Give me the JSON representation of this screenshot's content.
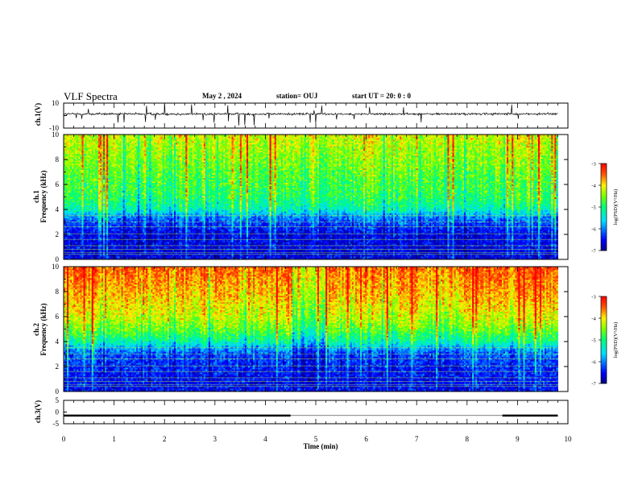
{
  "header": {
    "title": "VLF Spectra",
    "date": "May 2 , 2024",
    "station": "station= OUJ",
    "start": "start  UT =   20: 0  : 0"
  },
  "chart_data": [
    {
      "type": "line",
      "panel": "ch1-waveform",
      "ylabel": "ch.1(V)",
      "ylim": [
        -10,
        10
      ],
      "yticks": [
        "10",
        "-10"
      ],
      "baseline_mean": 1.3,
      "noise_amplitude": 1.5,
      "x_range_min": [
        0,
        9.8
      ]
    },
    {
      "type": "heatmap",
      "panel": "ch1-spectrogram",
      "ylabel": "Frequency (kHz)",
      "ylabel2": "ch.1",
      "ylim": [
        0,
        10
      ],
      "yticks": [
        "0",
        "2",
        "4",
        "6",
        "8",
        "10"
      ],
      "x_range_min": [
        0,
        9.8
      ],
      "colorbar": {
        "label": "log(PSD)(V²/Hz)",
        "range": [
          -7,
          -3
        ],
        "ticks": [
          "-3",
          "-4",
          "-5",
          "-6",
          "-7"
        ]
      },
      "band_profile_khz_to_logpsd": [
        [
          0,
          -6.6
        ],
        [
          1,
          -6.6
        ],
        [
          2,
          -6.6
        ],
        [
          3,
          -6.2
        ],
        [
          3.5,
          -5.9
        ],
        [
          4,
          -5.3
        ],
        [
          5,
          -4.9
        ],
        [
          6,
          -4.8
        ],
        [
          8,
          -4.5
        ],
        [
          10,
          -4.2
        ]
      ]
    },
    {
      "type": "heatmap",
      "panel": "ch2-spectrogram",
      "ylabel": "Frequency (kHz)",
      "ylabel2": "ch.2",
      "ylim": [
        0,
        10
      ],
      "yticks": [
        "0",
        "2",
        "4",
        "6",
        "8",
        "10"
      ],
      "x_range_min": [
        0,
        9.8
      ],
      "colorbar": {
        "label": "log(PSD)(V²/Hz)",
        "range": [
          -7,
          -3
        ],
        "ticks": [
          "-3",
          "-4",
          "-5",
          "-6",
          "-7"
        ]
      },
      "band_profile_khz_to_logpsd": [
        [
          0,
          -6.5
        ],
        [
          1,
          -6.5
        ],
        [
          2,
          -6.4
        ],
        [
          3,
          -6.2
        ],
        [
          3.5,
          -5.8
        ],
        [
          4,
          -5.2
        ],
        [
          5,
          -4.6
        ],
        [
          6,
          -4.2
        ],
        [
          8,
          -3.8
        ],
        [
          10,
          -3.5
        ]
      ]
    },
    {
      "type": "line",
      "panel": "ch3-trace",
      "ylabel": "ch.3(V)",
      "ylim": [
        -5,
        5
      ],
      "yticks": [
        "5",
        "0",
        "-5"
      ],
      "segments": [
        {
          "x": [
            0,
            4.5
          ],
          "y": -1.5
        },
        {
          "x": [
            8.7,
            9.8
          ],
          "y": -1.5
        }
      ]
    },
    {
      "type": "axis",
      "xlabel": "Time  (min)",
      "xlim": [
        0,
        10
      ],
      "xticks": [
        "0",
        "1",
        "2",
        "3",
        "4",
        "5",
        "6",
        "7",
        "8",
        "9",
        "10"
      ]
    }
  ]
}
